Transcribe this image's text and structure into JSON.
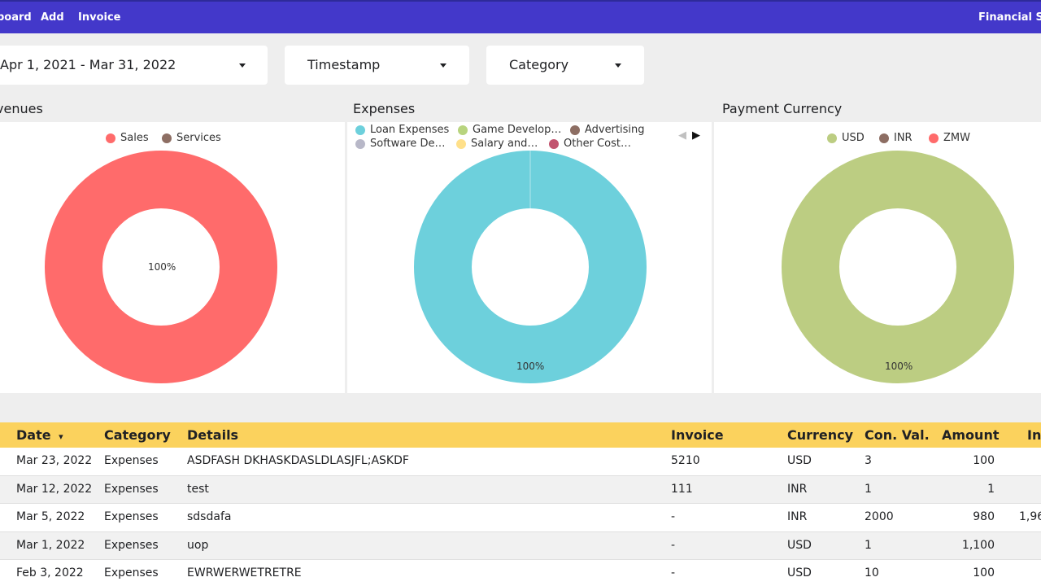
{
  "nav": {
    "items": [
      "board",
      "Add",
      "Invoice"
    ],
    "title": "Financial Sta"
  },
  "filters": {
    "date_range": "Apr 1, 2021 - Mar 31, 2022",
    "timestamp": "Timestamp",
    "category": "Category"
  },
  "charts": {
    "revenues": {
      "title": "venues",
      "legend": [
        "Sales",
        "Services"
      ],
      "legend_colors": [
        "#ff6b6b",
        "#8d6e63"
      ],
      "center_label": "100%",
      "color": "#ff6b6b"
    },
    "expenses": {
      "title": "Expenses",
      "legend": [
        "Loan Expenses",
        "Game Develop…",
        "Advertising",
        "Software De…",
        "Salary and…",
        "Other Cost…"
      ],
      "legend_colors": [
        "#6dd0dc",
        "#b8d47e",
        "#8d6e63",
        "#b8b8c8",
        "#ffe08a",
        "#c2546f"
      ],
      "pager_prev": "◀",
      "pager_next": "▶",
      "slice_label": "100%",
      "color": "#6dd0dc"
    },
    "currency": {
      "title": "Payment Currency",
      "legend": [
        "USD",
        "INR",
        "ZMW"
      ],
      "legend_colors": [
        "#bccd82",
        "#8d6e63",
        "#ff6b6b"
      ],
      "slice_label": "100%",
      "color": "#bccd82"
    }
  },
  "table": {
    "headers": {
      "date": "Date",
      "date_sort": "▾",
      "category": "Category",
      "details": "Details",
      "invoice": "Invoice",
      "currency": "Currency",
      "conval": "Con. Val.",
      "amount": "Amount",
      "extra": "In"
    },
    "rows": [
      {
        "date": "Mar 23, 2022",
        "category": "Expenses",
        "details": "ASDFASH DKHASKDASLDLASJFL;ASKDF",
        "invoice": "5210",
        "currency": "USD",
        "conval": "3",
        "amount": "100",
        "extra": ""
      },
      {
        "date": "Mar 12, 2022",
        "category": "Expenses",
        "details": "test",
        "invoice": "111",
        "currency": "INR",
        "conval": "1",
        "amount": "1",
        "extra": ""
      },
      {
        "date": "Mar 5, 2022",
        "category": "Expenses",
        "details": "sdsdafa",
        "invoice": "-",
        "currency": "INR",
        "conval": "2000",
        "amount": "980",
        "extra": "1,96"
      },
      {
        "date": "Mar 1, 2022",
        "category": "Expenses",
        "details": "uop",
        "invoice": "-",
        "currency": "USD",
        "conval": "1",
        "amount": "1,100",
        "extra": ""
      },
      {
        "date": "Feb 3, 2022",
        "category": "Expenses",
        "details": "EWRWERWETRETRE",
        "invoice": "-",
        "currency": "USD",
        "conval": "10",
        "amount": "100",
        "extra": ""
      }
    ]
  }
}
